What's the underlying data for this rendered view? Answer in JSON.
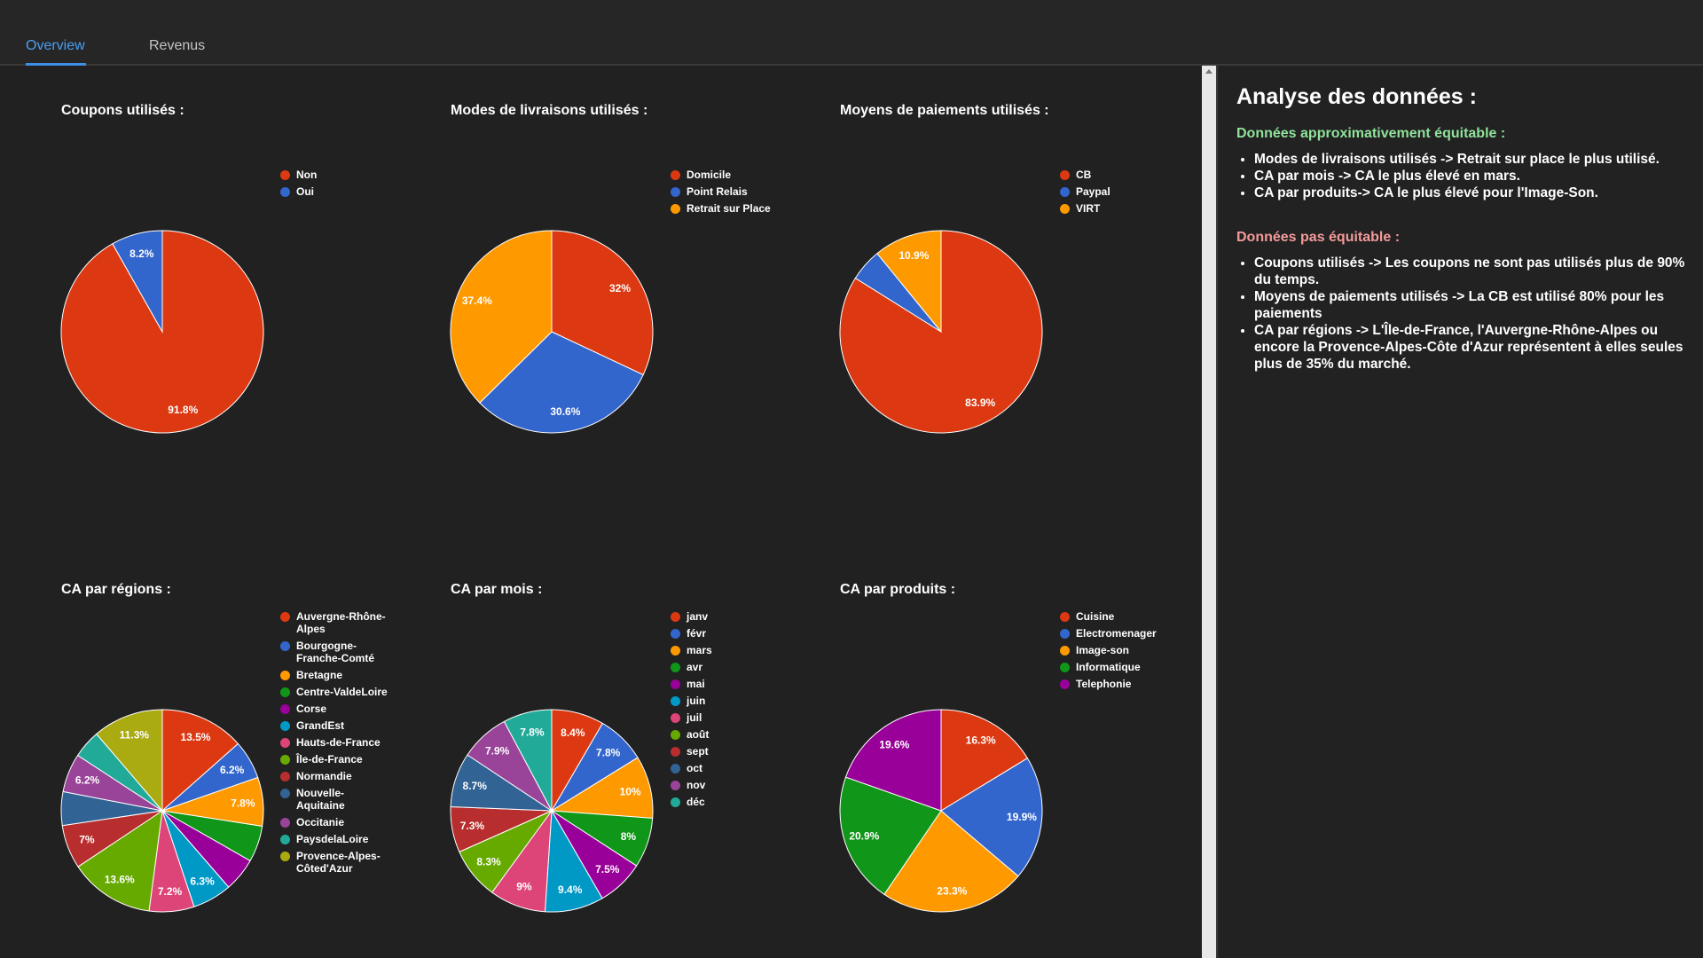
{
  "tabs": [
    {
      "label": "Overview",
      "active": true
    },
    {
      "label": "Revenus",
      "active": false
    }
  ],
  "colors": {
    "accent": "#3d8fe8",
    "equitable": "#8fe39a",
    "non_equitable": "#f49a9a"
  },
  "analysis": {
    "title": "Analyse des données :",
    "equitable_title": "Données approximativement équitable :",
    "equitable_items": [
      "Modes de livraisons utilisés -> Retrait sur place le plus utilisé.",
      "CA par mois -> CA le plus élevé en mars.",
      "CA par produits-> CA le plus élevé pour l'Image-Son."
    ],
    "non_equitable_title": "Données pas équitable :",
    "non_equitable_items": [
      "Coupons utilisés -> Les coupons ne sont pas utilisés plus de 90% du temps.",
      "Moyens de paiements utilisés -> La CB est utilisé 80% pour les paiements",
      "CA par régions -> L'Île-de-France, l'Auvergne-Rhône-Alpes ou encore la Provence-Alpes-Côte d'Azur représentent à elles seules plus de 35% du marché."
    ]
  },
  "chart_data": [
    {
      "type": "pie",
      "title": "Coupons utilisés :",
      "labels": [
        "Non",
        "Oui"
      ],
      "values": [
        91.8,
        8.2
      ],
      "colors": [
        "#dc3912",
        "#3366cc"
      ]
    },
    {
      "type": "pie",
      "title": "Modes de livraisons utilisés :",
      "labels": [
        "Domicile",
        "Point Relais",
        "Retrait sur Place"
      ],
      "values": [
        32,
        30.6,
        37.4
      ],
      "colors": [
        "#dc3912",
        "#3366cc",
        "#ff9900"
      ]
    },
    {
      "type": "pie",
      "title": "Moyens de paiements utilisés :",
      "labels": [
        "CB",
        "Paypal",
        "VIRT"
      ],
      "values": [
        83.9,
        5.2,
        10.9
      ],
      "colors": [
        "#dc3912",
        "#3366cc",
        "#ff9900"
      ]
    },
    {
      "type": "pie",
      "title": "CA par régions :",
      "labels": [
        "Auvergne-Rhône-Alpes",
        "Bourgogne-Franche-Comté",
        "Bretagne",
        "Centre-ValdeLoire",
        "Corse",
        "GrandEst",
        "Hauts-de-France",
        "Île-de-France",
        "Normandie",
        "Nouvelle-Aquitaine",
        "Occitanie",
        "PaysdelaLoire",
        "Provence-Alpes-Côted'Azur"
      ],
      "values": [
        13.5,
        6.2,
        7.8,
        5.8,
        5.4,
        6.3,
        7.2,
        13.6,
        7,
        5.4,
        6.2,
        4.5,
        11.3
      ],
      "colors": [
        "#dc3912",
        "#3366cc",
        "#ff9900",
        "#109618",
        "#990099",
        "#0099c6",
        "#dd4477",
        "#66aa00",
        "#b82e2e",
        "#316395",
        "#994499",
        "#22aa99",
        "#aaaa11"
      ]
    },
    {
      "type": "pie",
      "title": "CA par mois :",
      "labels": [
        "janv",
        "févr",
        "mars",
        "avr",
        "mai",
        "juin",
        "juil",
        "août",
        "sept",
        "oct",
        "nov",
        "déc"
      ],
      "values": [
        8.4,
        7.8,
        10,
        8,
        7.5,
        9.4,
        9,
        8.3,
        7.3,
        8.7,
        7.9,
        7.8
      ],
      "colors": [
        "#dc3912",
        "#3366cc",
        "#ff9900",
        "#109618",
        "#990099",
        "#0099c6",
        "#dd4477",
        "#66aa00",
        "#b82e2e",
        "#316395",
        "#994499",
        "#22aa99"
      ]
    },
    {
      "type": "pie",
      "title": "CA par produits :",
      "labels": [
        "Cuisine",
        "Electromenager",
        "Image-son",
        "Informatique",
        "Telephonie"
      ],
      "values": [
        16.3,
        19.9,
        23.3,
        20.9,
        19.6
      ],
      "colors": [
        "#dc3912",
        "#3366cc",
        "#ff9900",
        "#109618",
        "#990099"
      ]
    }
  ]
}
